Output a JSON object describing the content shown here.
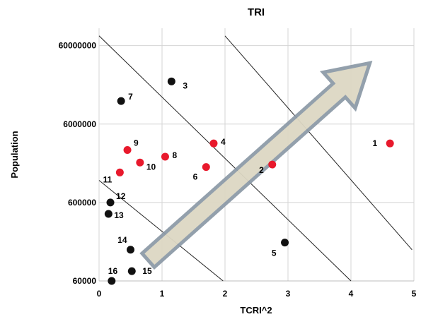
{
  "chart_data": {
    "type": "scatter",
    "title": "TRI",
    "xlabel": "TCRI^2",
    "ylabel": "Population",
    "xlim": [
      0,
      5
    ],
    "ylim": [
      60000,
      100000000
    ],
    "yscale": "log",
    "x_ticks": [
      0,
      1,
      2,
      3,
      4,
      5
    ],
    "y_ticks": [
      {
        "value": 60000,
        "label": "60000"
      },
      {
        "value": 600000,
        "label": "600000"
      },
      {
        "value": 6000000,
        "label": "6000000"
      },
      {
        "value": 60000000,
        "label": "60000000"
      }
    ],
    "grid": true,
    "colors": {
      "red": "#e8192c",
      "black": "#111111",
      "arrow_fill": "#ddd8c4",
      "arrow_edge": "#8e9ba8"
    },
    "points": [
      {
        "label": "1",
        "x": 4.62,
        "y": 3400000,
        "color": "red"
      },
      {
        "label": "2",
        "x": 2.75,
        "y": 1830000,
        "color": "red"
      },
      {
        "label": "3",
        "x": 1.15,
        "y": 21000000,
        "color": "black"
      },
      {
        "label": "4",
        "x": 1.82,
        "y": 3400000,
        "color": "red"
      },
      {
        "label": "5",
        "x": 2.95,
        "y": 185000,
        "color": "black"
      },
      {
        "label": "6",
        "x": 1.7,
        "y": 1700000,
        "color": "red"
      },
      {
        "label": "7",
        "x": 0.35,
        "y": 11800000,
        "color": "black"
      },
      {
        "label": "8",
        "x": 1.05,
        "y": 2300000,
        "color": "red"
      },
      {
        "label": "9",
        "x": 0.45,
        "y": 2800000,
        "color": "red"
      },
      {
        "label": "10",
        "x": 0.65,
        "y": 1940000,
        "color": "red"
      },
      {
        "label": "11",
        "x": 0.33,
        "y": 1450000,
        "color": "red"
      },
      {
        "label": "12",
        "x": 0.18,
        "y": 600000,
        "color": "black"
      },
      {
        "label": "13",
        "x": 0.15,
        "y": 430000,
        "color": "black"
      },
      {
        "label": "14",
        "x": 0.5,
        "y": 150000,
        "color": "black"
      },
      {
        "label": "15",
        "x": 0.52,
        "y": 80000,
        "color": "black"
      },
      {
        "label": "16",
        "x": 0.2,
        "y": 60000,
        "color": "black"
      }
    ],
    "lines": [
      {
        "x": [
          0,
          1.97
        ],
        "y": [
          1150000,
          60000
        ]
      },
      {
        "x": [
          0,
          4.0
        ],
        "y": [
          80000000,
          60000
        ]
      },
      {
        "x": [
          2.0,
          4.97
        ],
        "y": [
          80000000,
          150000
        ]
      }
    ],
    "arrow": {
      "from": [
        0.78,
        110000
      ],
      "to": [
        4.3,
        36000000
      ]
    }
  }
}
